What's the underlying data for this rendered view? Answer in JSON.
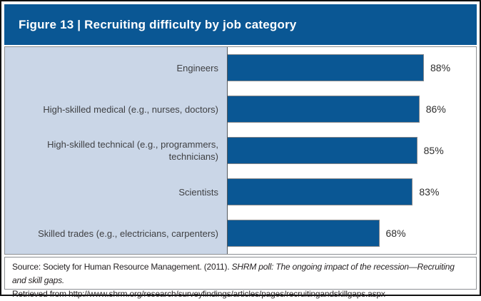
{
  "figure": {
    "header_title": "Figure 13 | Recruiting difficulty by job category"
  },
  "chart_data": {
    "type": "bar",
    "orientation": "horizontal",
    "title": "Recruiting difficulty by job category",
    "categories": [
      "Engineers",
      "High-skilled medical (e.g., nurses, doctors)",
      "High-skilled technical (e.g., programmers, technicians)",
      "Scientists",
      "Skilled trades (e.g., electricians, carpenters)"
    ],
    "values": [
      88,
      86,
      85,
      83,
      68
    ],
    "value_labels": [
      "88%",
      "86%",
      "85%",
      "83%",
      "68%"
    ],
    "xlabel": "",
    "ylabel": "",
    "xlim": [
      0,
      100
    ],
    "grid": false,
    "legend": false,
    "bar_color": "#0a5794",
    "label_panel_color": "#cad6e7"
  },
  "source": {
    "prefix": "Source: Society for Human Resource Management. (2011). ",
    "title_italic": "SHRM poll: The ongoing impact of the recession—Recruiting and skill gaps.",
    "line2": "Retrieved from http://www.shrm.org/research/surveyfindings/articles/pages/recruitingandskillgaps.aspx"
  },
  "colors": {
    "header_bg": "#0a5794",
    "header_text": "#ffffff",
    "bar_fill": "#0a5794",
    "label_panel_bg": "#cad6e7",
    "outer_border": "#111111",
    "inner_border": "#8c8f93"
  }
}
